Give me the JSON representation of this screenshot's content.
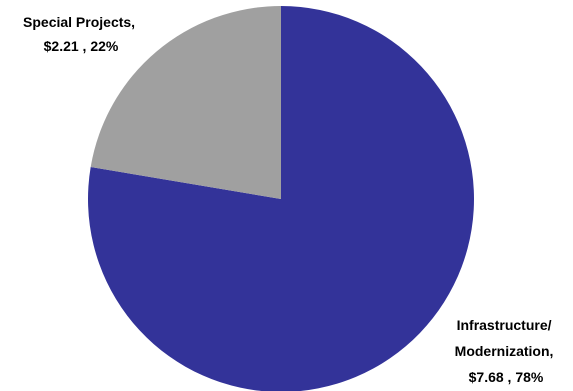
{
  "chart_data": {
    "type": "pie",
    "title": "",
    "slices": [
      {
        "name": "Infrastructure/ Modernization",
        "value": 7.68,
        "percent": 78,
        "color": "#333399",
        "label_lines": [
          "Infrastructure/",
          "Modernization,",
          "$7.68 , 78%"
        ]
      },
      {
        "name": "Special Projects",
        "value": 2.21,
        "percent": 22,
        "color": "#a0a0a0",
        "label_lines": [
          "Special Projects,",
          "$2.21 , 22%"
        ]
      }
    ],
    "start_angle": "12 o'clock",
    "direction": "clockwise",
    "legend": "none"
  }
}
